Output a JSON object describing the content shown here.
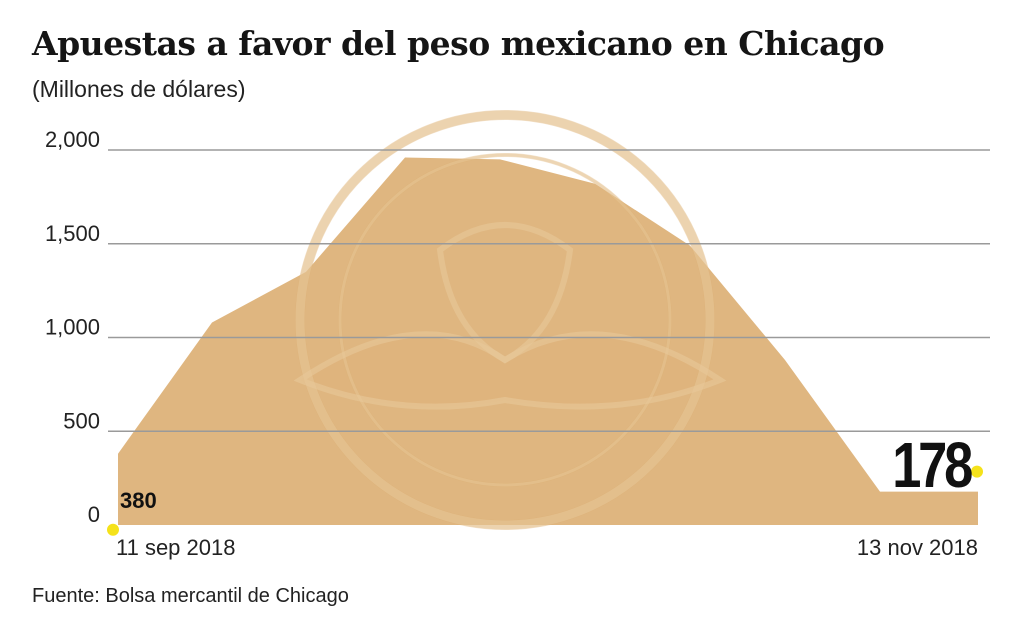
{
  "title": "Apuestas a favor del peso mexicano en Chicago",
  "subtitle": "(Millones de dólares)",
  "source": "Fuente: Bolsa mercantil de Chicago",
  "colors": {
    "area": "#dcae72",
    "grid": "#9a9a9a",
    "marker": "#f5e21a",
    "watermark": "#e7c79b"
  },
  "watermark_icon": "eagle-seal-icon",
  "chart_data": {
    "type": "area",
    "title": "Apuestas a favor del peso mexicano en Chicago",
    "subtitle": "(Millones de dólares)",
    "xlabel": "",
    "ylabel": "",
    "ylim": [
      0,
      2000
    ],
    "yticks": [
      0,
      500,
      1000,
      1500,
      2000
    ],
    "ytick_labels": [
      "0",
      "500",
      "1,000",
      "1,500",
      "2,000"
    ],
    "x_start_label": "11 sep 2018",
    "x_end_label": "13 nov 2018",
    "grid": true,
    "series": [
      {
        "values": [
          380,
          1080,
          1350,
          1960,
          1950,
          1820,
          1490,
          880,
          178,
          178
        ]
      }
    ],
    "annotations": [
      {
        "point": "start",
        "label": "380",
        "value": 380
      },
      {
        "point": "end",
        "label": "178",
        "value": 178
      }
    ]
  }
}
